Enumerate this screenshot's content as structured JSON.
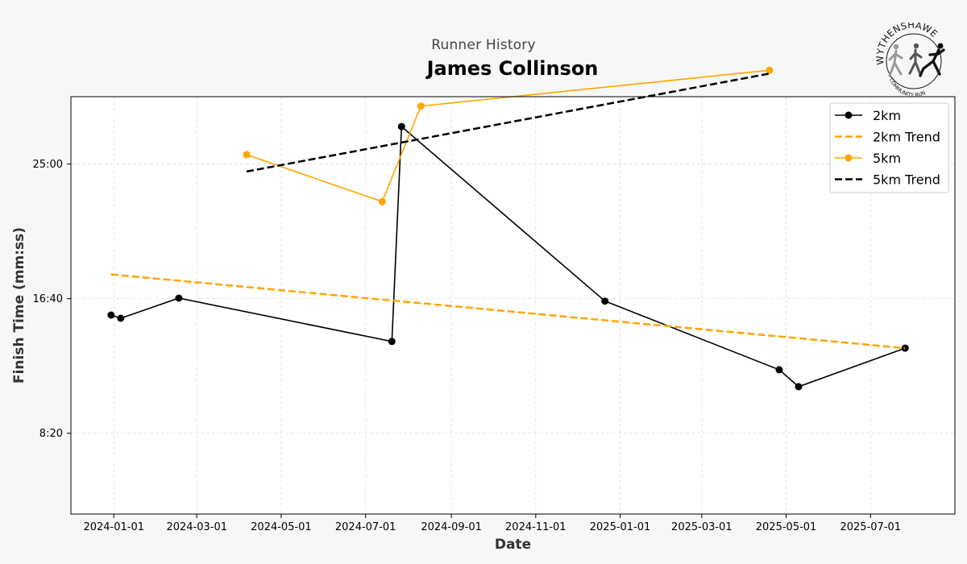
{
  "header": {
    "subtitle": "Runner History",
    "title": "James Collinson"
  },
  "logo": {
    "text_top": "WYTHENSHAWE",
    "text_bottom": "COMMUNITY RUN"
  },
  "colors": {
    "series_2km": "#000000",
    "series_5km": "#FFA500",
    "background": "#f7f7f7",
    "plot_background": "#ffffff"
  },
  "chart_data": {
    "type": "line",
    "xlabel": "Date",
    "ylabel": "Finish Time (mm:ss)",
    "x_type": "date",
    "xlim": [
      "2023-12-01",
      "2025-08-31"
    ],
    "ylim_seconds": [
      200,
      1750
    ],
    "x_ticks": [
      "2024-01-01",
      "2024-03-01",
      "2024-05-01",
      "2024-07-01",
      "2024-09-01",
      "2024-11-01",
      "2025-01-01",
      "2025-03-01",
      "2025-05-01",
      "2025-07-01"
    ],
    "y_ticks": [
      "8:20",
      "16:40",
      "25:00",
      "33:20"
    ],
    "y_tick_seconds": [
      500,
      1000,
      1500,
      2000
    ],
    "grid": true,
    "legend_position": "top-right",
    "series": [
      {
        "name": "2km",
        "style": "solid-marker",
        "color": "#000000",
        "points": [
          {
            "x": "2023-12-30",
            "y": "15:39"
          },
          {
            "x": "2024-01-06",
            "y": "15:27"
          },
          {
            "x": "2024-02-17",
            "y": "16:42"
          },
          {
            "x": "2024-07-20",
            "y": "14:01"
          },
          {
            "x": "2024-07-27",
            "y": "27:19"
          },
          {
            "x": "2024-12-21",
            "y": "16:31"
          },
          {
            "x": "2025-04-26",
            "y": "12:16"
          },
          {
            "x": "2025-05-10",
            "y": "11:13"
          },
          {
            "x": "2025-07-26",
            "y": "13:36"
          }
        ]
      },
      {
        "name": "2km Trend",
        "style": "dashed",
        "color": "#FFA500",
        "points": [
          {
            "x": "2023-12-30",
            "y": "18:10"
          },
          {
            "x": "2025-07-26",
            "y": "13:36"
          }
        ]
      },
      {
        "name": "5km",
        "style": "solid-marker",
        "color": "#FFA500",
        "points": [
          {
            "x": "2024-04-06",
            "y": "25:35"
          },
          {
            "x": "2024-07-13",
            "y": "22:40"
          },
          {
            "x": "2024-08-10",
            "y": "28:35"
          },
          {
            "x": "2025-04-19",
            "y": "30:48"
          }
        ]
      },
      {
        "name": "5km Trend",
        "style": "dashed",
        "color": "#000000",
        "points": [
          {
            "x": "2024-04-06",
            "y": "24:32"
          },
          {
            "x": "2025-04-19",
            "y": "30:36"
          }
        ]
      }
    ]
  }
}
